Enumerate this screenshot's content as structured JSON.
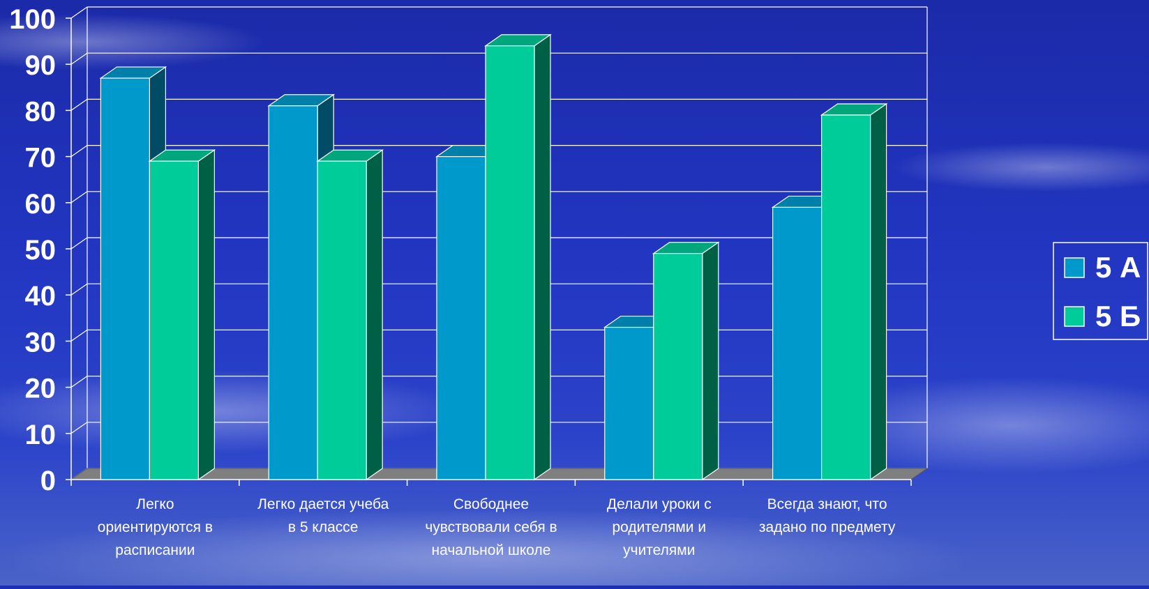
{
  "chart_data": {
    "type": "bar",
    "categories": [
      [
        "Легко",
        "ориентируются в",
        "расписании"
      ],
      [
        "Легко дается учеба",
        "в 5 классе"
      ],
      [
        "Свободнее",
        "чувствовали себя в",
        "начальной школе"
      ],
      [
        "Делали уроки с",
        "родителями и",
        "учителями"
      ],
      [
        "Всегда знают, что",
        "задано по предмету"
      ]
    ],
    "series": [
      {
        "name": "5 А",
        "values": [
          87,
          81,
          70,
          33,
          59
        ]
      },
      {
        "name": "5 Б",
        "values": [
          69,
          69,
          94,
          49,
          79
        ]
      }
    ],
    "ylim": [
      0,
      100
    ],
    "yticks": [
      0,
      10,
      20,
      30,
      40,
      50,
      60,
      70,
      80,
      90,
      100
    ],
    "grid": true,
    "legend_position": "right",
    "colors": {
      "series_front": [
        "#0099cc",
        "#00cc99"
      ],
      "series_top": [
        "#007fa8",
        "#00a67c"
      ],
      "series_side": [
        "#004c66",
        "#006046"
      ],
      "grid": "#ffffff",
      "floor": "#7f7f7f",
      "text": "#ffffff"
    }
  }
}
